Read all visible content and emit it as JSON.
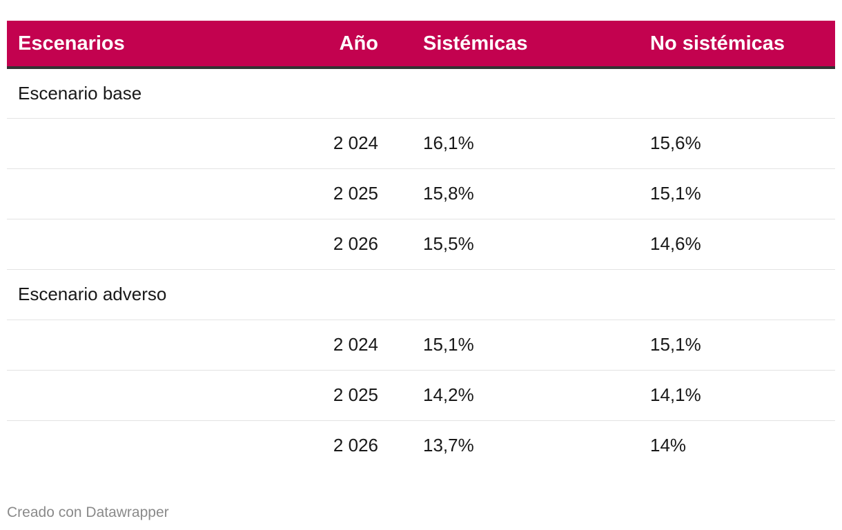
{
  "chart_data": {
    "type": "table",
    "columns": [
      "Escenarios",
      "Año",
      "Sistémicas",
      "No sistémicas"
    ],
    "rows": [
      {
        "group": "Escenario base",
        "year": "",
        "sistemicas": "",
        "no_sistemicas": ""
      },
      {
        "group": "",
        "year": "2 024",
        "sistemicas": "16,1%",
        "no_sistemicas": "15,6%"
      },
      {
        "group": "",
        "year": "2 025",
        "sistemicas": "15,8%",
        "no_sistemicas": "15,1%"
      },
      {
        "group": "",
        "year": "2 026",
        "sistemicas": "15,5%",
        "no_sistemicas": "14,6%"
      },
      {
        "group": "Escenario adverso",
        "year": "",
        "sistemicas": "",
        "no_sistemicas": ""
      },
      {
        "group": "",
        "year": "2 024",
        "sistemicas": "15,1%",
        "no_sistemicas": "15,1%"
      },
      {
        "group": "",
        "year": "2 025",
        "sistemicas": "14,2%",
        "no_sistemicas": "14,1%"
      },
      {
        "group": "",
        "year": "2 026",
        "sistemicas": "13,7%",
        "no_sistemicas": "14%"
      }
    ]
  },
  "colors": {
    "header_background": "#c3024f",
    "header_text": "#ffffff",
    "header_rule": "#333333"
  },
  "footer": {
    "credit": "Creado con Datawrapper"
  }
}
